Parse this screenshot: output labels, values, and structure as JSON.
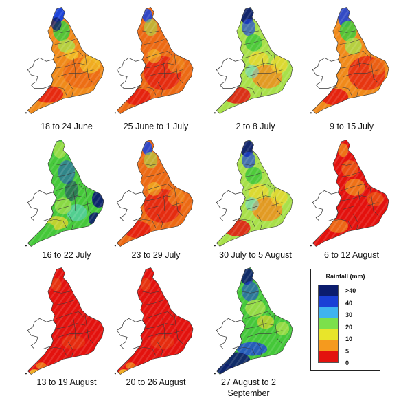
{
  "figure": {
    "maps": [
      {
        "caption": "18 to 24 June",
        "scheme": "mixed-orange"
      },
      {
        "caption": "25 June to 1 July",
        "scheme": "orange-red"
      },
      {
        "caption": "2 to 8 July",
        "scheme": "mixed-green"
      },
      {
        "caption": "9 to 15 July",
        "scheme": "orange-red-north-green"
      },
      {
        "caption": "16 to 22 July",
        "scheme": "wet-green-blue"
      },
      {
        "caption": "23 to 29 July",
        "scheme": "orange-red"
      },
      {
        "caption": "30 July to 5 August",
        "scheme": "mixed-green"
      },
      {
        "caption": "6 to 12 August",
        "scheme": "red-orange"
      },
      {
        "caption": "13 to 19 August",
        "scheme": "dry-red"
      },
      {
        "caption": "20 to 26 August",
        "scheme": "dry-red"
      },
      {
        "caption": "27 August to 2 September",
        "scheme": "wet-southwest"
      }
    ]
  },
  "legend": {
    "title": "Rainfall (mm)",
    "labels": [
      ">40",
      "40",
      "30",
      "20",
      "10",
      "5",
      "0"
    ],
    "colors": [
      "#0b1c6e",
      "#1a3fd6",
      "#3fb3f0",
      "#7ce04b",
      "#e8e52a",
      "#f59a1e",
      "#e3120e"
    ]
  }
}
